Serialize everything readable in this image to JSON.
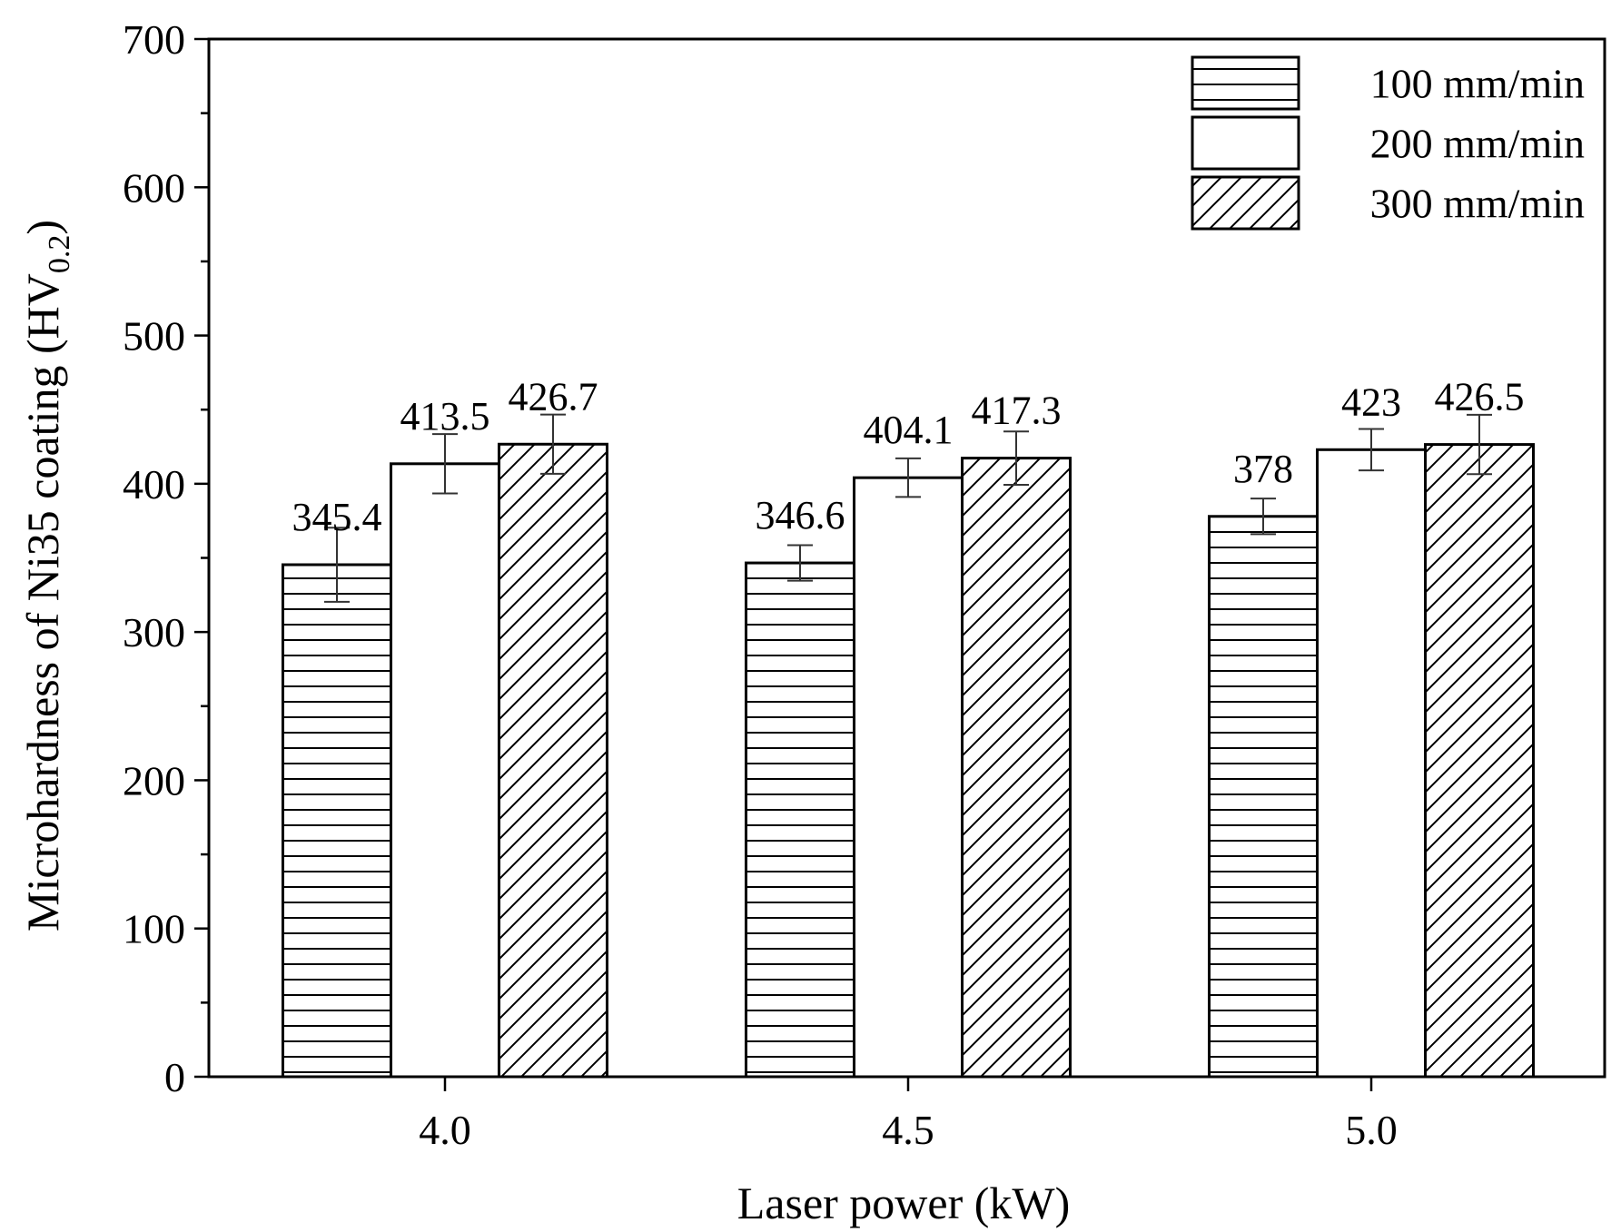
{
  "chart_data": {
    "type": "bar",
    "xlabel": "Laser power (kW)",
    "ylabel": {
      "main": "Microhardness of Ni35 coating (HV",
      "subscript": "0.2",
      "close": ")"
    },
    "categories": [
      "4.0",
      "4.5",
      "5.0"
    ],
    "series": [
      {
        "name": "100 mm/min",
        "values": [
          345.4,
          346.6,
          378
        ],
        "value_labels": [
          "345.4",
          "346.6",
          "378"
        ],
        "errors": [
          25,
          12,
          12
        ],
        "pattern": "horizontal-lines"
      },
      {
        "name": "200 mm/min",
        "values": [
          413.5,
          404.1,
          423
        ],
        "value_labels": [
          "413.5",
          "404.1",
          "423"
        ],
        "errors": [
          20,
          13,
          14
        ],
        "pattern": "none"
      },
      {
        "name": "300 mm/min",
        "values": [
          426.7,
          417.3,
          426.5
        ],
        "value_labels": [
          "426.7",
          "417.3",
          "426.5"
        ],
        "errors": [
          20,
          18,
          20
        ],
        "pattern": "diagonal-lines"
      }
    ],
    "ylim": [
      0,
      700
    ],
    "yticks": [
      0,
      100,
      200,
      300,
      400,
      500,
      600,
      700
    ],
    "grid": false,
    "legend": "top-right"
  }
}
